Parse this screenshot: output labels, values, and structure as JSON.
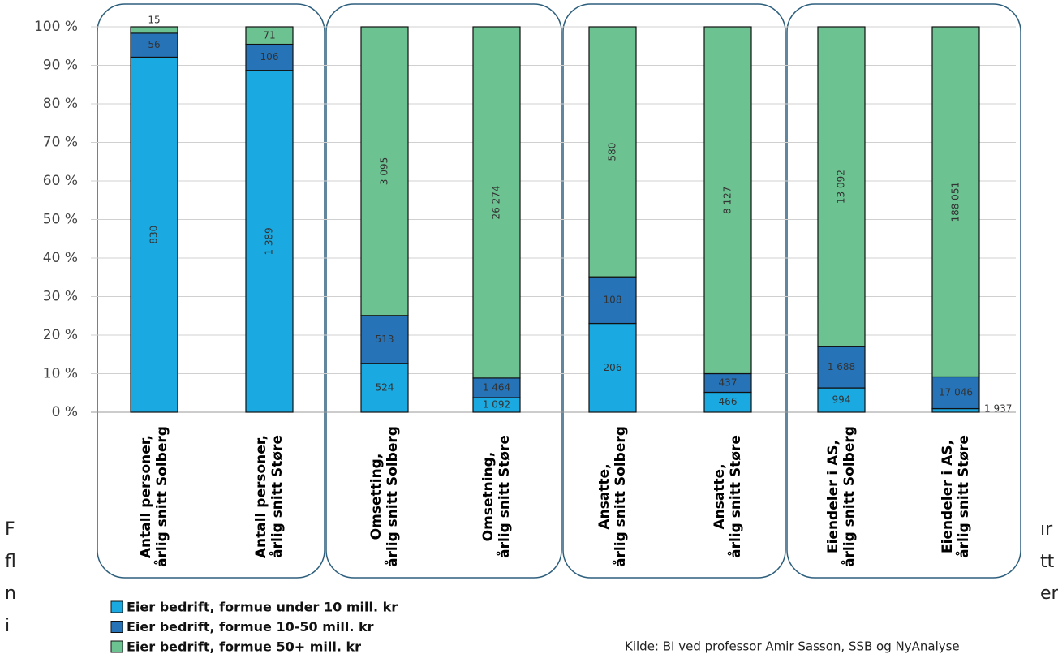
{
  "chart_data": {
    "type": "bar",
    "stacking": "percent",
    "categories": [
      "Antall personer,\nårlig snitt Solberg",
      "Antall personer,\nårlig snitt Støre",
      "Omsetting,\nårlig snitt Solberg",
      "Omsetning,\nårlig snitt Støre",
      "Ansatte,\nårlig snitt Solberg",
      "Ansatte,\nårlig snitt Støre",
      "Eiendeler i AS,\nårlig snitt Solberg",
      "Eiendeler i AS,\nårlig snitt Støre"
    ],
    "series": [
      {
        "name": "Eier bedrift, formue under 10 mill. kr",
        "color": "#1aa9e0",
        "values": [
          830,
          1389,
          524,
          1092,
          206,
          466,
          994,
          1937
        ],
        "value_labels": [
          "830",
          "1 389",
          "524",
          "1 092",
          "206",
          "466",
          "994",
          "1 937"
        ]
      },
      {
        "name": "Eier bedrift, formue 10-50 mill. kr",
        "color": "#2673b8",
        "values": [
          56,
          106,
          513,
          1464,
          108,
          437,
          1688,
          17046
        ],
        "value_labels": [
          "56",
          "106",
          "513",
          "1 464",
          "108",
          "437",
          "1 688",
          "17 046"
        ]
      },
      {
        "name": "Eier bedrift, formue 50+ mill. kr",
        "color": "#6cc391",
        "values": [
          15,
          71,
          3095,
          26274,
          580,
          8127,
          13092,
          188051
        ],
        "value_labels": [
          "15",
          "71",
          "3 095",
          "26 274",
          "580",
          "8 127",
          "13 092",
          "188 051"
        ]
      }
    ],
    "ylim": [
      0,
      100
    ],
    "yticks": [
      {
        "value": 0,
        "label": "0 %"
      },
      {
        "value": 10,
        "label": "10 %"
      },
      {
        "value": 20,
        "label": "20 %"
      },
      {
        "value": 30,
        "label": "30 %"
      },
      {
        "value": 40,
        "label": "40 %"
      },
      {
        "value": 50,
        "label": "50 %"
      },
      {
        "value": 60,
        "label": "60 %"
      },
      {
        "value": 70,
        "label": "70 %"
      },
      {
        "value": 80,
        "label": "80 %"
      },
      {
        "value": 90,
        "label": "90 %"
      },
      {
        "value": 100,
        "label": "100 %"
      }
    ],
    "grid": true,
    "source": "Kilde: BI ved professor Amir Sasson, SSB og NyAnalyse"
  },
  "left_fragments": [
    "F",
    "fl",
    "n",
    "i"
  ],
  "right_fragments": [
    "ır",
    "tt",
    "er"
  ]
}
